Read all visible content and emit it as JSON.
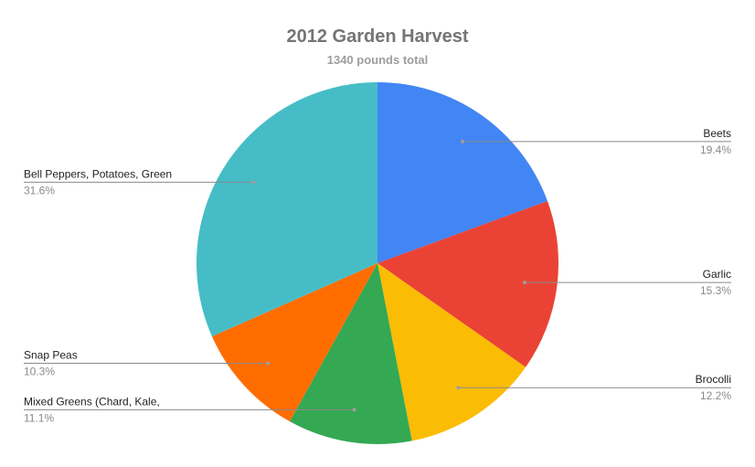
{
  "chart_data": {
    "type": "pie",
    "title": "2012 Garden Harvest",
    "subtitle": "1340 pounds total",
    "slices": [
      {
        "label": "Beets",
        "percent_label": "19.4%",
        "value": 19.4,
        "color": "#4285f4",
        "label_side": "right"
      },
      {
        "label": "Garlic",
        "percent_label": "15.3%",
        "value": 15.3,
        "color": "#ea4335",
        "label_side": "right"
      },
      {
        "label": "Brocolli",
        "percent_label": "12.2%",
        "value": 12.2,
        "color": "#fbbc04",
        "label_side": "right"
      },
      {
        "label": "Mixed Greens (Chard, Kale,",
        "percent_label": "11.1%",
        "value": 11.1,
        "color": "#34a853",
        "label_side": "left"
      },
      {
        "label": "Snap Peas",
        "percent_label": "10.3%",
        "value": 10.3,
        "color": "#ff6d01",
        "label_side": "left"
      },
      {
        "label": "Bell Peppers, Potatoes, Green",
        "percent_label": "31.6%",
        "value": 31.6,
        "color": "#46bdc6",
        "label_side": "left"
      }
    ],
    "start_angle": "12 o'clock",
    "direction": "clockwise",
    "legend": "none"
  }
}
